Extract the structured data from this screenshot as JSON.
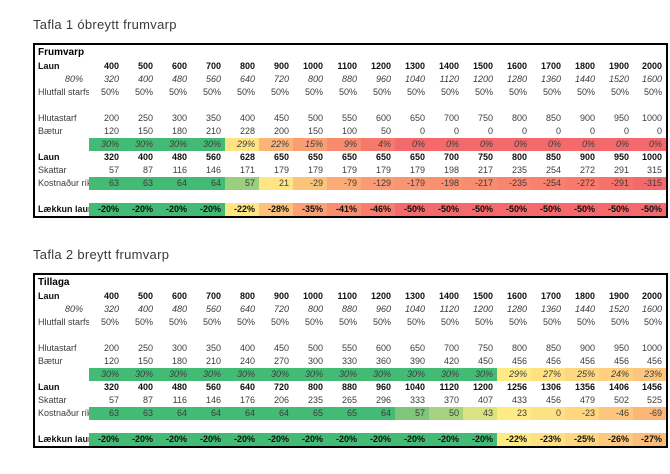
{
  "tables": [
    {
      "title": "Tafla 1 óbreytt frumvarp",
      "rows": [
        {
          "label": "Frumvarp",
          "cls": "header",
          "values": []
        },
        {
          "label": "Laun",
          "cls": "bold",
          "values": [
            "400",
            "500",
            "600",
            "700",
            "800",
            "900",
            "1000",
            "1100",
            "1200",
            "1300",
            "1400",
            "1500",
            "1600",
            "1700",
            "1800",
            "1900",
            "2000"
          ]
        },
        {
          "label": "80%",
          "cls": "italic right-label",
          "values": [
            "320",
            "400",
            "480",
            "560",
            "640",
            "720",
            "800",
            "880",
            "960",
            "1040",
            "1120",
            "1200",
            "1280",
            "1360",
            "1440",
            "1520",
            "1600"
          ]
        },
        {
          "label": "Hlutfall starfs",
          "cls": "",
          "values": [
            "50%",
            "50%",
            "50%",
            "50%",
            "50%",
            "50%",
            "50%",
            "50%",
            "50%",
            "50%",
            "50%",
            "50%",
            "50%",
            "50%",
            "50%",
            "50%",
            "50%"
          ]
        },
        {
          "label": "",
          "cls": "spacer",
          "values": []
        },
        {
          "label": "Hlutastarf",
          "cls": "",
          "values": [
            "200",
            "250",
            "300",
            "350",
            "400",
            "450",
            "500",
            "550",
            "600",
            "650",
            "700",
            "750",
            "800",
            "850",
            "900",
            "950",
            "1000"
          ]
        },
        {
          "label": "Bætur",
          "cls": "",
          "values": [
            "120",
            "150",
            "180",
            "210",
            "228",
            "200",
            "150",
            "100",
            "50",
            "0",
            "0",
            "0",
            "0",
            "0",
            "0",
            "0",
            "0"
          ]
        },
        {
          "label": "",
          "cls": "italic",
          "values": [
            "30%",
            "30%",
            "30%",
            "30%",
            "29%",
            "22%",
            "15%",
            "9%",
            "4%",
            "0%",
            "0%",
            "0%",
            "0%",
            "0%",
            "0%",
            "0%",
            "0%"
          ],
          "colors": [
            "#43BB74",
            "#43BB74",
            "#43BB74",
            "#43BB74",
            "#FFE282",
            "#FBB377",
            "#F99E73",
            "#F88B6F",
            "#F7796C",
            "#F4696B",
            "#F4696B",
            "#F4696B",
            "#F4696B",
            "#F4696B",
            "#F4696B",
            "#F4696B",
            "#F4696B"
          ]
        },
        {
          "label": "Laun",
          "cls": "bold",
          "values": [
            "320",
            "400",
            "480",
            "560",
            "628",
            "650",
            "650",
            "650",
            "650",
            "650",
            "700",
            "750",
            "800",
            "850",
            "900",
            "950",
            "1000"
          ]
        },
        {
          "label": "Skattar",
          "cls": "",
          "values": [
            "57",
            "87",
            "116",
            "146",
            "171",
            "179",
            "179",
            "179",
            "179",
            "179",
            "198",
            "217",
            "235",
            "254",
            "272",
            "291",
            "315"
          ]
        },
        {
          "label": "Kostnaður ríki",
          "cls": "",
          "values": [
            "63",
            "63",
            "64",
            "64",
            "57",
            "21",
            "-29",
            "-79",
            "-129",
            "-179",
            "-198",
            "-217",
            "-235",
            "-254",
            "-272",
            "-291",
            "-315"
          ],
          "colors": [
            "#43BB74",
            "#43BB74",
            "#43BB74",
            "#43BB74",
            "#9ACF7E",
            "#FFE583",
            "#FCC47B",
            "#FBAC76",
            "#FA9B73",
            "#F99672",
            "#F99171",
            "#F88C6F",
            "#F8866E",
            "#F8806D",
            "#F77A6C",
            "#F7716B",
            "#F4696B"
          ]
        },
        {
          "label": "",
          "cls": "spacer",
          "values": []
        },
        {
          "label": "Lækkun launa",
          "cls": "bold",
          "values": [
            "-20%",
            "-20%",
            "-20%",
            "-20%",
            "-22%",
            "-28%",
            "-35%",
            "-41%",
            "-46%",
            "-50%",
            "-50%",
            "-50%",
            "-50%",
            "-50%",
            "-50%",
            "-50%",
            "-50%"
          ],
          "colors": [
            "#43BB74",
            "#43BB74",
            "#43BB74",
            "#43BB74",
            "#FFE683",
            "#FCC17B",
            "#FAA074",
            "#F88D70",
            "#F77D6D",
            "#F4696B",
            "#F4696B",
            "#F4696B",
            "#F4696B",
            "#F4696B",
            "#F4696B",
            "#F4696B",
            "#F4696B"
          ]
        }
      ]
    },
    {
      "title": "Tafla 2 breytt frumvarp",
      "rows": [
        {
          "label": "Tillaga",
          "cls": "header",
          "values": []
        },
        {
          "label": "Laun",
          "cls": "bold",
          "values": [
            "400",
            "500",
            "600",
            "700",
            "800",
            "900",
            "1000",
            "1100",
            "1200",
            "1300",
            "1400",
            "1500",
            "1600",
            "1700",
            "1800",
            "1900",
            "2000"
          ]
        },
        {
          "label": "80%",
          "cls": "italic right-label",
          "values": [
            "320",
            "400",
            "480",
            "560",
            "640",
            "720",
            "800",
            "880",
            "960",
            "1040",
            "1120",
            "1200",
            "1280",
            "1360",
            "1440",
            "1520",
            "1600"
          ]
        },
        {
          "label": "Hlutfall starfs",
          "cls": "",
          "values": [
            "50%",
            "50%",
            "50%",
            "50%",
            "50%",
            "50%",
            "50%",
            "50%",
            "50%",
            "50%",
            "50%",
            "50%",
            "50%",
            "50%",
            "50%",
            "50%",
            "50%"
          ]
        },
        {
          "label": "",
          "cls": "spacer",
          "values": []
        },
        {
          "label": "Hlutastarf",
          "cls": "",
          "values": [
            "200",
            "250",
            "300",
            "350",
            "400",
            "450",
            "500",
            "550",
            "600",
            "650",
            "700",
            "750",
            "800",
            "850",
            "900",
            "950",
            "1000"
          ]
        },
        {
          "label": "Bætur",
          "cls": "",
          "values": [
            "120",
            "150",
            "180",
            "210",
            "240",
            "270",
            "300",
            "330",
            "360",
            "390",
            "420",
            "450",
            "456",
            "456",
            "456",
            "456",
            "456"
          ]
        },
        {
          "label": "",
          "cls": "italic",
          "values": [
            "30%",
            "30%",
            "30%",
            "30%",
            "30%",
            "30%",
            "30%",
            "30%",
            "30%",
            "30%",
            "30%",
            "30%",
            "29%",
            "27%",
            "25%",
            "24%",
            "23%"
          ],
          "colors": [
            "#43BB74",
            "#43BB74",
            "#43BB74",
            "#43BB74",
            "#43BB74",
            "#43BB74",
            "#43BB74",
            "#43BB74",
            "#43BB74",
            "#43BB74",
            "#43BB74",
            "#43BB74",
            "#FFEB84",
            "#FFE182",
            "#FED880",
            "#FDCF7E",
            "#FCC77C"
          ]
        },
        {
          "label": "Laun",
          "cls": "bold",
          "values": [
            "320",
            "400",
            "480",
            "560",
            "640",
            "720",
            "800",
            "880",
            "960",
            "1040",
            "1120",
            "1200",
            "1256",
            "1306",
            "1356",
            "1406",
            "1456"
          ]
        },
        {
          "label": "Skattar",
          "cls": "",
          "values": [
            "57",
            "87",
            "116",
            "146",
            "176",
            "206",
            "235",
            "265",
            "296",
            "333",
            "370",
            "407",
            "433",
            "456",
            "479",
            "502",
            "525"
          ]
        },
        {
          "label": "Kostnaður ríki",
          "cls": "",
          "values": [
            "63",
            "63",
            "64",
            "64",
            "64",
            "64",
            "65",
            "65",
            "64",
            "57",
            "50",
            "43",
            "23",
            "0",
            "-23",
            "-46",
            "-69"
          ],
          "colors": [
            "#43BB74",
            "#43BB74",
            "#43BB74",
            "#43BB74",
            "#43BB74",
            "#43BB74",
            "#43BB74",
            "#43BB74",
            "#43BB74",
            "#7FC67C",
            "#A5D37F",
            "#D9E382",
            "#FFEB84",
            "#FEE183",
            "#FED780",
            "#FCC77C",
            "#FBB678"
          ]
        },
        {
          "label": "",
          "cls": "spacer",
          "values": []
        },
        {
          "label": "Lækkun launa",
          "cls": "bold",
          "values": [
            "-20%",
            "-20%",
            "-20%",
            "-20%",
            "-20%",
            "-20%",
            "-20%",
            "-20%",
            "-20%",
            "-20%",
            "-20%",
            "-20%",
            "-22%",
            "-23%",
            "-25%",
            "-26%",
            "-27%"
          ],
          "colors": [
            "#43BB74",
            "#43BB74",
            "#43BB74",
            "#43BB74",
            "#43BB74",
            "#43BB74",
            "#43BB74",
            "#43BB74",
            "#43BB74",
            "#43BB74",
            "#43BB74",
            "#43BB74",
            "#FFEB84",
            "#FFE082",
            "#FED67F",
            "#FDCA7D",
            "#FBBD7A"
          ]
        }
      ]
    }
  ],
  "layout_colors": {
    "scale_green": "#43BB74",
    "scale_yellow": "#FFEB84",
    "scale_red": "#F4696B"
  }
}
